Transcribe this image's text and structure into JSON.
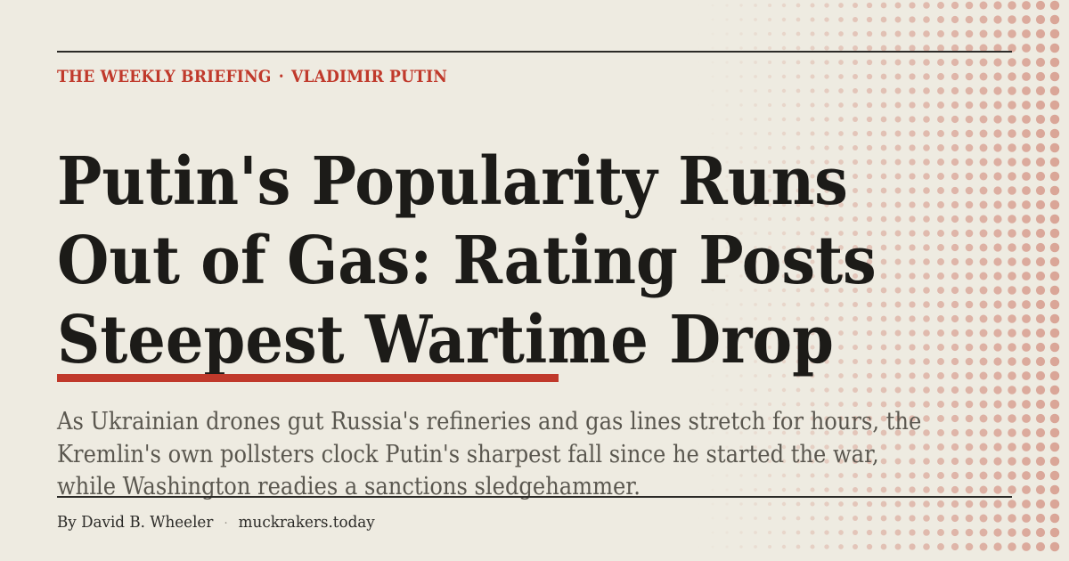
{
  "kicker": {
    "section": "THE WEEKLY BRIEFING",
    "separator": "·",
    "topic": "VLADIMIR PUTIN"
  },
  "headline": {
    "lines": [
      "Putin's Popularity Runs",
      "Out of Gas: Rating Posts",
      "Steepest Wartime Drop"
    ]
  },
  "dek": {
    "lines": [
      "As Ukrainian drones gut Russia's refineries and gas lines stretch for hours, the",
      "Kremlin's own pollsters clock Putin's sharpest fall since he started the war,",
      "while Washington readies a sanctions sledgehammer."
    ]
  },
  "byline": {
    "author": "By David B. Wheeler",
    "separator": "·",
    "site": "muckrakers.today"
  },
  "colors": {
    "background": "#eeebe1",
    "accent": "#c0392b",
    "text": "#1c1b18",
    "dek_text": "#5a574f",
    "dots": "#d9a395"
  }
}
